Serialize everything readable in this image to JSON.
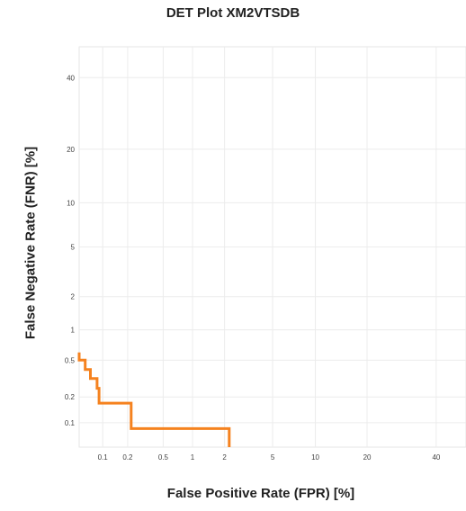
{
  "chart_data": {
    "type": "line",
    "title": "DET Plot XM2VTSDB",
    "xlabel": "False Positive Rate (FPR) [%]",
    "ylabel": "False Negative Rate (FNR) [%]",
    "scale": "normal-deviate (probit)",
    "xlim": [
      0.05,
      50
    ],
    "ylim": [
      0.05,
      50
    ],
    "xticks": [
      0.1,
      0.2,
      0.5,
      1,
      2,
      5,
      10,
      20,
      40
    ],
    "yticks": [
      0.1,
      0.2,
      0.5,
      1,
      2,
      5,
      10,
      20,
      40
    ],
    "xtick_labels": [
      "0.1",
      "0.2",
      "0.5",
      "1",
      "2",
      "5",
      "10",
      "20",
      "40"
    ],
    "ytick_labels": [
      "0.1",
      "0.2",
      "0.5",
      "1",
      "2",
      "5",
      "10",
      "20",
      "40"
    ],
    "grid": true,
    "color": "#f5821f",
    "series": [
      {
        "x": [
          0.05,
          0.05,
          0.06,
          0.06,
          0.07,
          0.07,
          0.085,
          0.085,
          0.09,
          0.09,
          0.22,
          0.22,
          2.2,
          2.2
        ],
        "y": [
          0.6,
          0.5,
          0.5,
          0.4,
          0.4,
          0.32,
          0.32,
          0.25,
          0.25,
          0.17,
          0.17,
          0.085,
          0.085,
          0.05
        ]
      }
    ]
  }
}
